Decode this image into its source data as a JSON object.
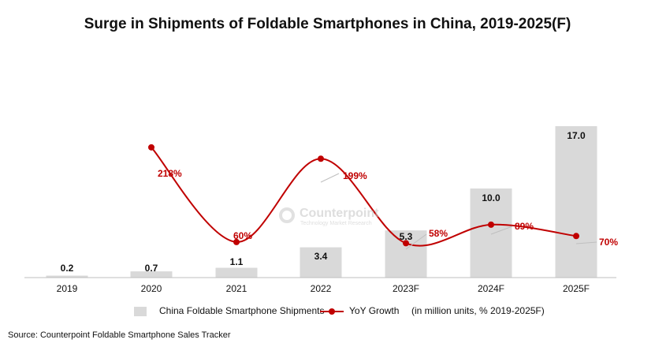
{
  "chart_data": {
    "type": "bar",
    "title": "Surge in Shipments of Foldable Smartphones in China, 2019-2025(F)",
    "categories": [
      "2019",
      "2020",
      "2021",
      "2022",
      "2023F",
      "2024F",
      "2025F"
    ],
    "series": [
      {
        "name": "China Foldable Smartphone Shipments",
        "type": "bar",
        "values": [
          0.2,
          0.7,
          1.1,
          3.4,
          5.3,
          10.0,
          17.0
        ],
        "labels": [
          "0.2",
          "0.7",
          "1.1",
          "3.4",
          "5.3",
          "10.0",
          "17.0"
        ],
        "color": "#d9d9d9"
      },
      {
        "name": "YoY Growth",
        "type": "line",
        "values": [
          null,
          218,
          60,
          199,
          58,
          89,
          70
        ],
        "labels": [
          "",
          "218%",
          "60%",
          "199%",
          "58%",
          "89%",
          "70%"
        ],
        "color": "#c00000",
        "smooth": true
      }
    ],
    "legend_note": "(in million units, % 2019-2025F)",
    "legend_position": "bottom",
    "grid": false
  },
  "watermark": {
    "name": "Counterpoint",
    "sub": "Technology Market Research"
  },
  "source": "Source: Counterpoint Foldable Smartphone Sales Tracker"
}
